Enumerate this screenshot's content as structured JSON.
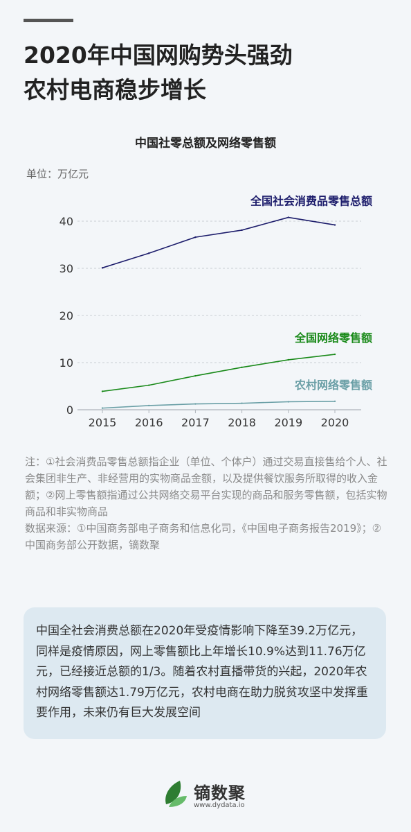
{
  "header": {
    "title_line1": "2020年中国网购势头强劲",
    "title_line2": "农村电商稳步增长"
  },
  "chart_data": {
    "type": "line",
    "title": "中国社零总额及网络零售额",
    "unit_label": "单位：万亿元",
    "x": [
      "2015",
      "2016",
      "2017",
      "2018",
      "2019",
      "2020"
    ],
    "yticks": [
      "0",
      "10",
      "20",
      "30",
      "40"
    ],
    "ylim": [
      0,
      45
    ],
    "grid": true,
    "series": [
      {
        "name": "全国社会消费品零售总额",
        "values": [
          30.1,
          33.2,
          36.6,
          38.1,
          40.8,
          39.2
        ],
        "color": "#1c1c6b"
      },
      {
        "name": "全国网络零售额",
        "values": [
          3.9,
          5.2,
          7.2,
          9.0,
          10.6,
          11.76
        ],
        "color": "#1a8a1a"
      },
      {
        "name": "农村网络零售额",
        "values": [
          0.35,
          0.89,
          1.24,
          1.37,
          1.7,
          1.79
        ],
        "color": "#6a9fa6"
      }
    ]
  },
  "notes": {
    "note": "注：①社会消费品零售总额指企业（单位、个体户）通过交易直接售给个人、社会集团非生产、非经营用的实物商品金额，以及提供餐饮服务所取得的收入金额；②网上零售额指通过公共网络交易平台实现的商品和服务零售额，包括实物商品和非实物商品",
    "source": "数据来源：①中国商务部电子商务和信息化司，《中国电子商务报告2019》；②中国商务部公开数据，镝数聚"
  },
  "summary": {
    "text": "中国全社会消费总额在2020年受疫情影响下降至39.2万亿元，同样是疫情原因，网上零售额比上年增长10.9%达到11.76万亿元，已经接近总额的1/3。随着农村直播带货的兴起，2020年农村网络零售额达1.79万亿元，农村电商在助力脱贫攻坚中发挥重要作用，未来仍有巨大发展空间"
  },
  "brand": {
    "name": "镝数聚",
    "url": "www.dydata.io",
    "leaf_colors": [
      "#2e7d32",
      "#66bb6a"
    ]
  }
}
